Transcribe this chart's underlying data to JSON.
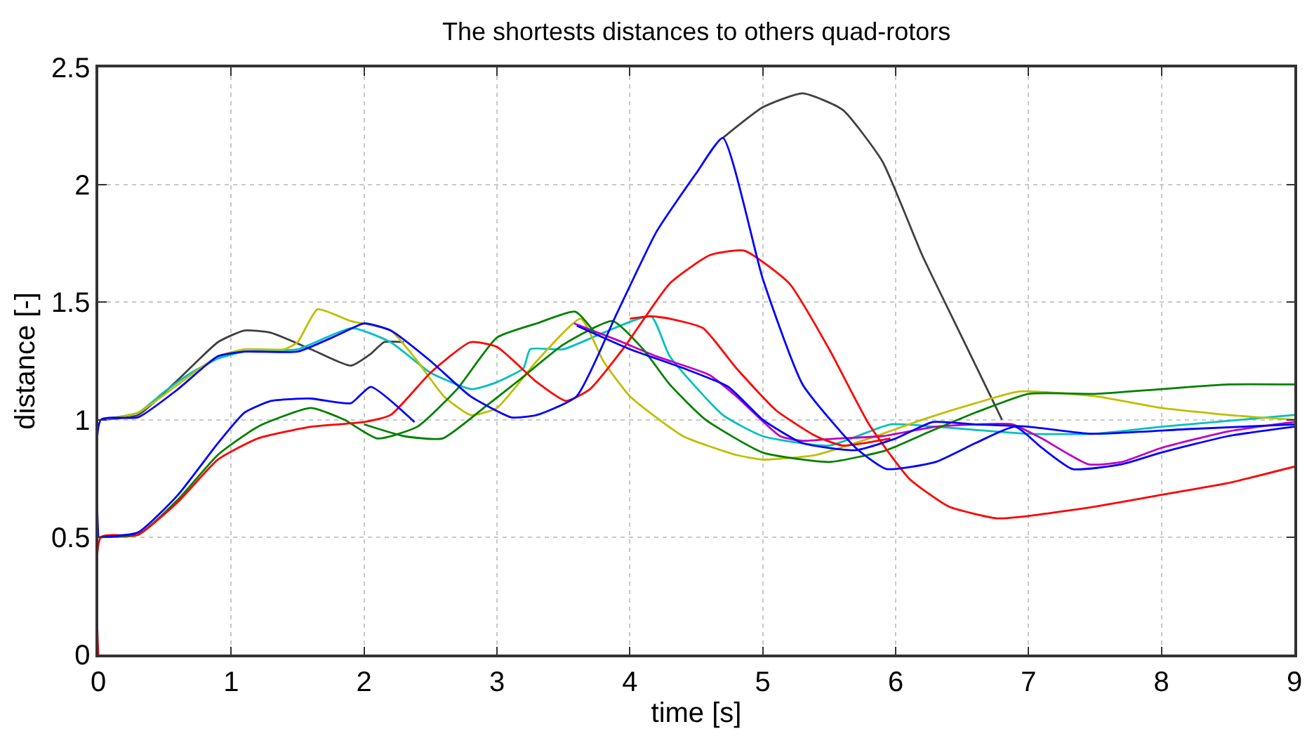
{
  "chart_data": {
    "type": "line",
    "title": "The shortests distances to others quad-rotors",
    "xlabel": "time [s]",
    "ylabel": "distance [-]",
    "xlim": [
      0,
      9
    ],
    "xticks": [
      0,
      1,
      2,
      3,
      4,
      5,
      6,
      7,
      8,
      9
    ],
    "ylim": [
      0,
      2.5
    ],
    "yticks": [
      0,
      0.5,
      1,
      1.5,
      2,
      2.5
    ],
    "grid": true,
    "marker": "none",
    "line_style": "solid",
    "series": [
      {
        "color": "#404040",
        "x": [
          0.02,
          0.3,
          0.6,
          0.9,
          1.1,
          1.3,
          1.6,
          1.9,
          2.05,
          2.15,
          2.3,
          2.31,
          4.7,
          5.0,
          5.3,
          5.6,
          5.9,
          6.2,
          6.5,
          6.8
        ],
        "values": [
          1.0,
          1.02,
          1.17,
          1.33,
          1.38,
          1.37,
          1.3,
          1.23,
          1.28,
          1.33,
          1.33,
          null,
          2.2,
          2.33,
          2.39,
          2.32,
          2.1,
          1.7,
          1.35,
          1.0
        ]
      },
      {
        "color": "#00bfbf",
        "x": [
          0.02,
          0.3,
          0.5,
          0.7,
          0.9,
          1.1,
          1.5,
          1.91,
          2.2,
          2.5,
          2.81,
          3.0,
          3.2,
          3.25,
          3.5,
          3.8,
          4.16,
          4.3,
          4.7,
          5.0,
          5.5,
          5.96,
          6.3,
          7.0,
          7.5,
          8.0,
          9.0
        ],
        "values": [
          1.0,
          1.03,
          1.12,
          1.2,
          1.26,
          1.29,
          1.3,
          1.39,
          1.33,
          1.2,
          1.13,
          1.16,
          1.22,
          1.3,
          1.3,
          1.37,
          1.44,
          1.27,
          1.02,
          0.93,
          0.89,
          0.98,
          0.97,
          0.94,
          0.94,
          0.97,
          1.02
        ]
      },
      {
        "color": "#bfbf00",
        "x": [
          0.02,
          0.3,
          0.6,
          0.9,
          1.1,
          1.4,
          1.5,
          1.65,
          1.9,
          2.2,
          2.4,
          2.6,
          2.8,
          3.0,
          3.3,
          3.63,
          3.8,
          4.0,
          4.4,
          4.8,
          5.0,
          5.4,
          5.8,
          6.2,
          6.6,
          6.93,
          7.5,
          8.0,
          8.5,
          9.0
        ],
        "values": [
          1.0,
          1.03,
          1.15,
          1.27,
          1.3,
          1.3,
          1.33,
          1.47,
          1.42,
          1.38,
          1.25,
          1.1,
          1.02,
          1.05,
          1.25,
          1.43,
          1.25,
          1.1,
          0.93,
          0.85,
          0.83,
          0.85,
          0.92,
          1.0,
          1.07,
          1.12,
          1.1,
          1.05,
          1.02,
          1.0
        ]
      },
      {
        "color": "#bf00bf",
        "x": [
          3.58,
          3.9,
          4.2,
          4.6,
          4.8,
          5.13,
          5.3,
          5.56,
          5.9,
          6.3,
          6.6,
          6.88,
          7.1,
          7.45,
          7.7,
          8.0,
          8.5,
          9.0
        ],
        "values": [
          1.41,
          1.34,
          1.27,
          1.19,
          1.1,
          0.93,
          0.91,
          0.92,
          0.93,
          0.97,
          0.98,
          0.98,
          0.92,
          0.81,
          0.82,
          0.88,
          0.95,
          0.99
        ]
      },
      {
        "color": "#008000",
        "x": [
          0.0,
          0.02,
          0.3,
          0.6,
          0.9,
          1.2,
          1.6,
          1.85,
          2.1,
          2.4,
          2.7,
          3.0,
          3.3,
          3.59,
          3.75
        ],
        "values": [
          0.5,
          0.5,
          0.51,
          0.66,
          0.85,
          0.97,
          1.05,
          1.0,
          0.92,
          0.97,
          1.13,
          1.35,
          1.41,
          1.46,
          1.36
        ]
      },
      {
        "color": "#008000",
        "x": [
          2.0,
          2.3,
          2.59,
          2.9,
          3.17,
          3.5,
          3.87,
          4.1,
          4.3,
          4.57,
          5.0,
          5.5,
          5.93,
          6.26,
          6.6,
          7.0,
          7.5,
          8.0,
          8.5,
          9.0
        ],
        "values": [
          0.98,
          0.93,
          0.92,
          1.05,
          1.17,
          1.32,
          1.42,
          1.3,
          1.15,
          1.0,
          0.86,
          0.82,
          0.87,
          0.95,
          1.03,
          1.11,
          1.11,
          1.13,
          1.15,
          1.15
        ]
      },
      {
        "color": "#ff0000",
        "x": [
          0.0,
          0.02,
          0.3,
          0.6,
          0.9,
          1.2,
          1.6,
          2.0,
          2.2,
          2.5,
          2.8,
          3.0,
          3.3,
          3.52,
          3.7,
          3.96,
          4.3,
          4.6,
          4.86,
          5.2,
          5.5,
          5.8,
          6.1,
          6.4,
          6.76,
          7.0,
          7.5,
          8.0,
          8.5,
          9.0
        ],
        "values": [
          0.0,
          0.5,
          0.51,
          0.65,
          0.83,
          0.92,
          0.97,
          0.99,
          1.02,
          1.2,
          1.33,
          1.31,
          1.16,
          1.08,
          1.13,
          1.31,
          1.58,
          1.7,
          1.72,
          1.58,
          1.3,
          0.98,
          0.75,
          0.63,
          0.58,
          0.59,
          0.63,
          0.68,
          0.73,
          0.8
        ]
      },
      {
        "color": "#ff0000",
        "x": [
          4.0,
          4.16,
          4.3,
          4.55,
          4.8,
          5.1,
          5.4,
          5.6,
          5.96
        ],
        "values": [
          1.43,
          1.44,
          1.43,
          1.39,
          1.22,
          1.04,
          0.93,
          0.89,
          0.92
        ]
      },
      {
        "color": "#0000ff",
        "x": [
          0.0,
          0.02,
          0.3,
          0.6,
          0.9,
          1.1,
          1.5,
          1.8,
          2.0,
          2.2,
          2.5,
          2.8,
          3.11,
          3.3,
          3.6,
          3.9,
          4.2,
          4.5,
          4.7,
          5.0,
          5.3,
          5.7,
          5.93,
          6.3,
          6.6,
          6.9,
          7.1,
          7.33,
          7.7,
          8.0,
          8.5,
          9.0
        ],
        "values": [
          0.5,
          1.0,
          1.01,
          1.13,
          1.27,
          1.29,
          1.29,
          1.36,
          1.41,
          1.38,
          1.25,
          1.1,
          1.01,
          1.02,
          1.1,
          1.45,
          1.8,
          2.05,
          2.2,
          1.6,
          1.15,
          0.88,
          0.79,
          0.82,
          0.9,
          0.97,
          0.88,
          0.79,
          0.81,
          0.86,
          0.93,
          0.97
        ]
      },
      {
        "color": "#0000ff",
        "x": [
          0.02,
          0.3,
          0.6,
          0.9,
          1.1,
          1.3,
          1.6,
          1.9,
          2.05,
          2.38,
          2.39,
          3.6,
          4.0,
          4.4,
          4.74,
          5.0,
          5.3,
          5.7,
          6.0,
          6.28,
          6.6,
          7.0,
          7.47,
          8.2,
          9.0
        ],
        "values": [
          0.5,
          0.52,
          0.68,
          0.9,
          1.03,
          1.08,
          1.09,
          1.07,
          1.14,
          0.99,
          null,
          1.4,
          1.3,
          1.22,
          1.14,
          1.0,
          0.9,
          0.87,
          0.92,
          0.99,
          0.98,
          0.97,
          0.94,
          0.96,
          0.98
        ]
      }
    ]
  }
}
